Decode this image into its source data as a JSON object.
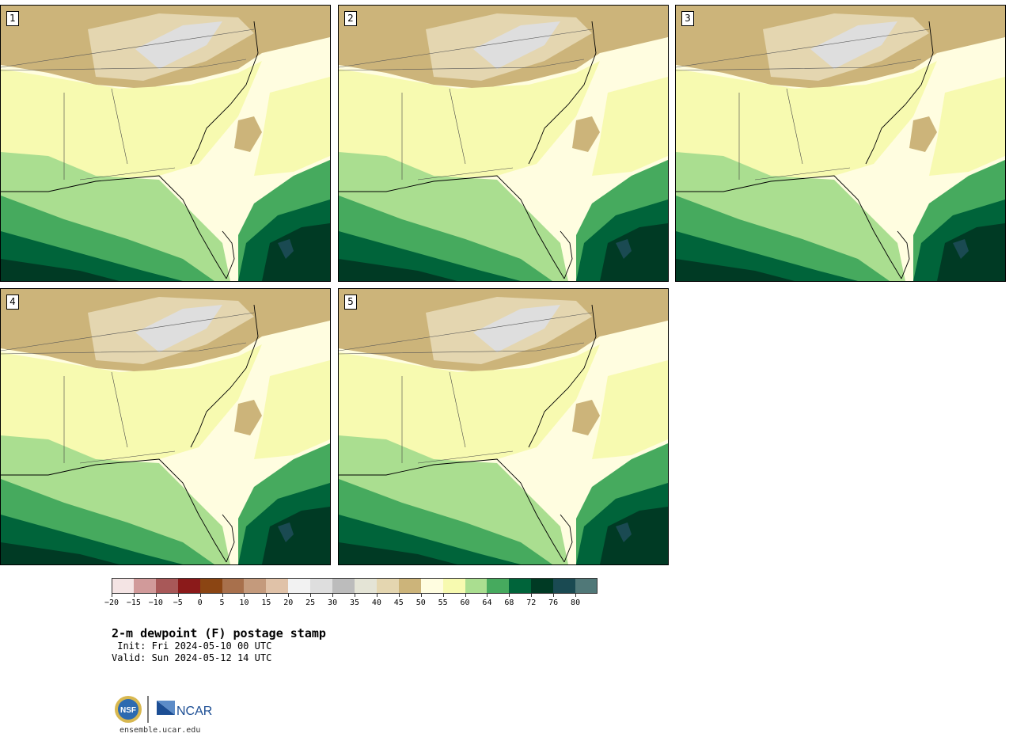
{
  "panels": [
    {
      "label": "1"
    },
    {
      "label": "2"
    },
    {
      "label": "3"
    },
    {
      "label": "4"
    },
    {
      "label": "5"
    }
  ],
  "colorbar": {
    "ticks": [
      "−20",
      "−15",
      "−10",
      "−5",
      "0",
      "5",
      "10",
      "15",
      "20",
      "25",
      "30",
      "35",
      "40",
      "45",
      "50",
      "55",
      "60",
      "64",
      "68",
      "72",
      "76",
      "80"
    ],
    "colors": [
      "#f4e4e4",
      "#d19a9a",
      "#a85858",
      "#8b1a1a",
      "#8b4513",
      "#a8704c",
      "#c49a7c",
      "#e0c2a8",
      "#f2f2f2",
      "#dedede",
      "#bcbcbc",
      "#e4e4d6",
      "#e4d6b0",
      "#ccb47a",
      "#fffde0",
      "#f7fab0",
      "#aade90",
      "#46aa5e",
      "#00643a",
      "#003a24",
      "#1a4a52",
      "#507878"
    ]
  },
  "title": "2-m dewpoint (F) postage stamp",
  "init": " Init: Fri 2024-05-10 00 UTC",
  "valid": "Valid: Sun 2024-05-12 14 UTC",
  "footer_url": "ensemble.ucar.edu",
  "logos": {
    "nsf": "NSF",
    "ncar": "NCAR"
  }
}
